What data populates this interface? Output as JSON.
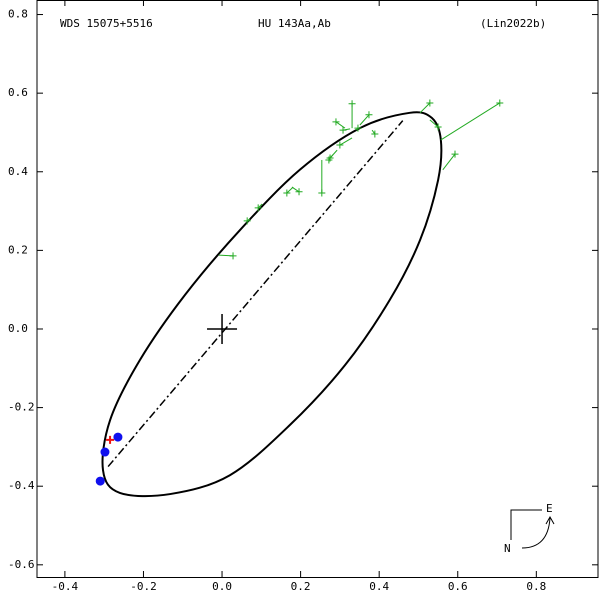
{
  "chart_data": {
    "type": "orbit",
    "title": "WDS 15075+5516",
    "subtitle": "HU  143Aa,Ab",
    "reference": "(Lin2022b)",
    "xlim": [
      -0.471,
      0.957
    ],
    "ylim": [
      -0.631,
      0.837
    ],
    "xticks": [
      -0.4,
      -0.2,
      {
        "value": 0,
        "label": "0.0"
      },
      0.2,
      0.4,
      0.6,
      0.8
    ],
    "yticks": [
      -0.6,
      -0.4,
      -0.2,
      {
        "value": 0,
        "label": "0.0"
      },
      0.2,
      0.4,
      0.6,
      0.8
    ],
    "orbit": {
      "color": "#000000",
      "x": [
        0.478,
        0.534,
        0.557,
        0.55,
        0.504,
        0.427,
        0.313,
        0.173,
        0.02,
        -0.132,
        -0.26,
        -0.303,
        -0.285,
        -0.209,
        -0.094,
        0.046,
        0.198,
        0.351
      ],
      "y": [
        0.55,
        0.537,
        0.481,
        0.379,
        0.226,
        0.074,
        -0.092,
        -0.244,
        -0.372,
        -0.42,
        -0.417,
        -0.359,
        -0.232,
        -0.079,
        0.087,
        0.252,
        0.405,
        0.511
      ]
    },
    "line_of_nodes": {
      "x": [
        -0.29,
        0.46
      ],
      "y": [
        -0.35,
        0.53
      ]
    },
    "primary": {
      "x": 0,
      "y": 0
    },
    "observations": {
      "color": "#22aa22",
      "x": [
        0.707,
        0.529,
        0.55,
        0.593,
        0.331,
        0.374,
        0.29,
        0.308,
        0.346,
        0.389,
        0.3,
        0.275,
        0.272,
        0.254,
        0.196,
        0.165,
        0.092,
        0.064,
        0.028
      ],
      "y": [
        0.575,
        0.575,
        0.514,
        0.445,
        0.573,
        0.545,
        0.527,
        0.506,
        0.511,
        0.496,
        0.468,
        0.435,
        0.43,
        0.346,
        0.349,
        0.346,
        0.308,
        0.275,
        0.186
      ]
    },
    "residual_ends": {
      "x": [
        0.557,
        0.504,
        0.529,
        0.562,
        0.331,
        0.351,
        0.313,
        0.326,
        0.341,
        0.382,
        0.331,
        0.293,
        0.282,
        0.254,
        0.178,
        0.181,
        0.102,
        0.071,
        -0.008
      ],
      "y": [
        0.481,
        0.55,
        0.532,
        0.405,
        0.511,
        0.519,
        0.511,
        0.509,
        0.506,
        0.506,
        0.486,
        0.455,
        0.443,
        0.43,
        0.361,
        0.361,
        0.318,
        0.28,
        0.188
      ]
    },
    "blue_points": {
      "color": "#1010ee",
      "x": [
        -0.31,
        -0.298,
        -0.265
      ],
      "y": [
        -0.387,
        -0.313,
        -0.275
      ]
    },
    "red_points": {
      "color": "#ee1010",
      "x": [
        -0.285
      ],
      "y": [
        -0.282
      ]
    },
    "compass": {
      "east": "E",
      "north": "N"
    }
  }
}
